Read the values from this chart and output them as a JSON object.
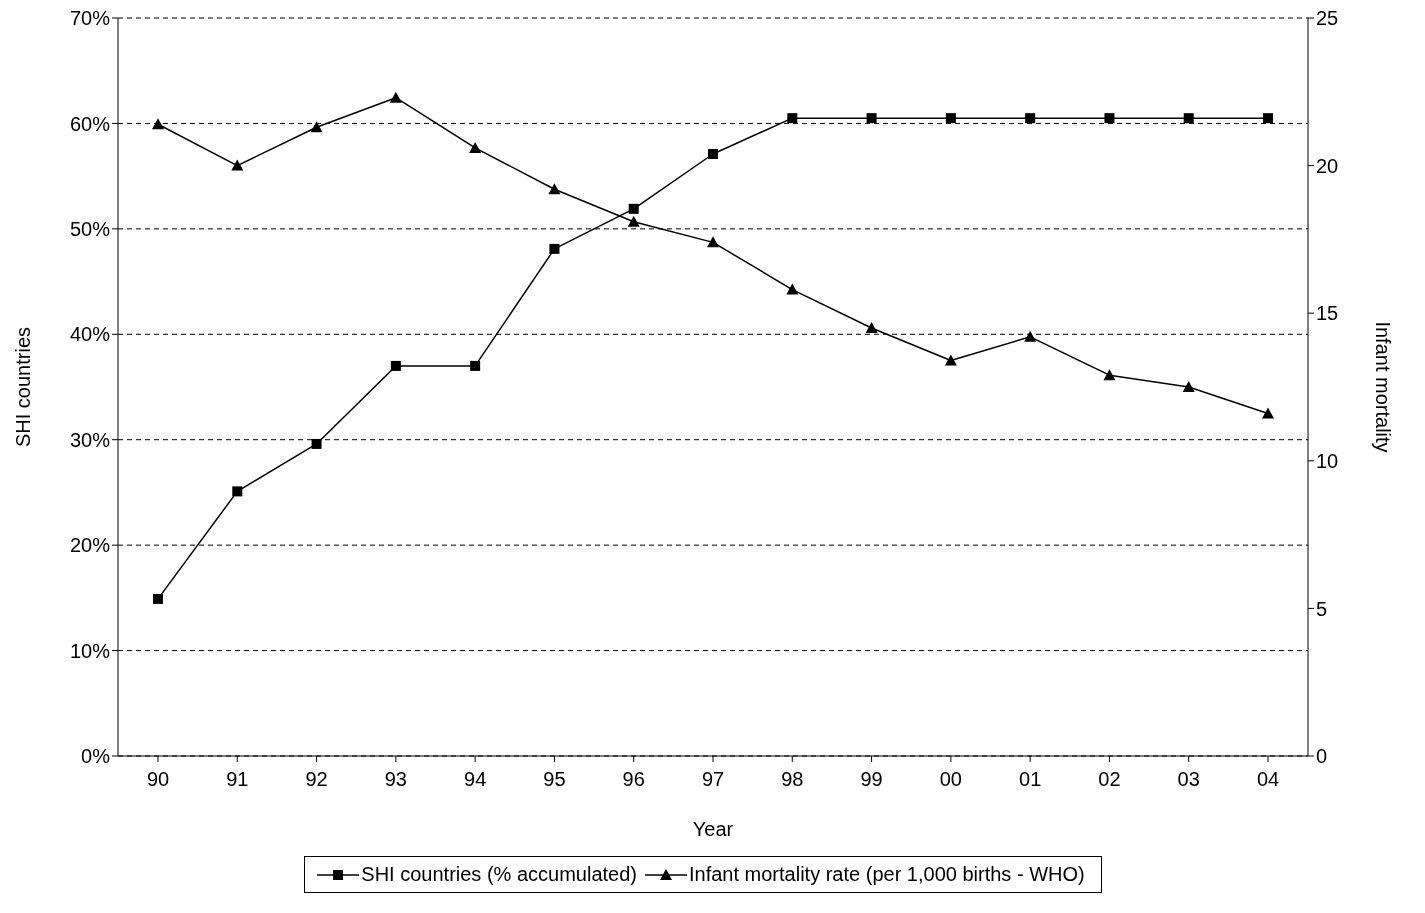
{
  "chart_data": {
    "type": "line",
    "xlabel": "Year",
    "ylabel": "SHI countries",
    "y2label": "Infant mortality",
    "categories": [
      "90",
      "91",
      "92",
      "93",
      "94",
      "95",
      "96",
      "97",
      "98",
      "99",
      "00",
      "01",
      "02",
      "03",
      "04"
    ],
    "series": [
      {
        "name": "SHI countries (% accumulated)",
        "color": "#000000",
        "marker": "square",
        "values": [
          14.9,
          25.1,
          29.6,
          37,
          37,
          48.1,
          51.9,
          57.1,
          60.5,
          60.5,
          60.5,
          60.5,
          60.5,
          60.5,
          60.5
        ]
      },
      {
        "name": "Infant mortality rate (per 1,000 births - WHO)",
        "color": "#000000",
        "marker": "triangle",
        "axis": "y2",
        "values": [
          21.4,
          20.0,
          21.3,
          22.3,
          20.6,
          19.2,
          18.1,
          17.4,
          15.8,
          14.5,
          13.4,
          14.2,
          12.9,
          12.5,
          11.6
        ]
      }
    ],
    "ylim": [
      0,
      70
    ],
    "yticks": [
      {
        "value": 0,
        "label": "0%"
      },
      {
        "value": 10,
        "label": "10%"
      },
      {
        "value": 20,
        "label": "20%"
      },
      {
        "value": 30,
        "label": "30%"
      },
      {
        "value": 40,
        "label": "40%"
      },
      {
        "value": 50,
        "label": "50%"
      },
      {
        "value": 60,
        "label": "60%"
      },
      {
        "value": 70,
        "label": "70%"
      }
    ],
    "y2lim": [
      0,
      25
    ],
    "y2ticks": [
      0,
      5,
      10,
      15,
      20,
      25
    ],
    "grid": "y",
    "legend": "bottom",
    "line_style": "solid"
  }
}
